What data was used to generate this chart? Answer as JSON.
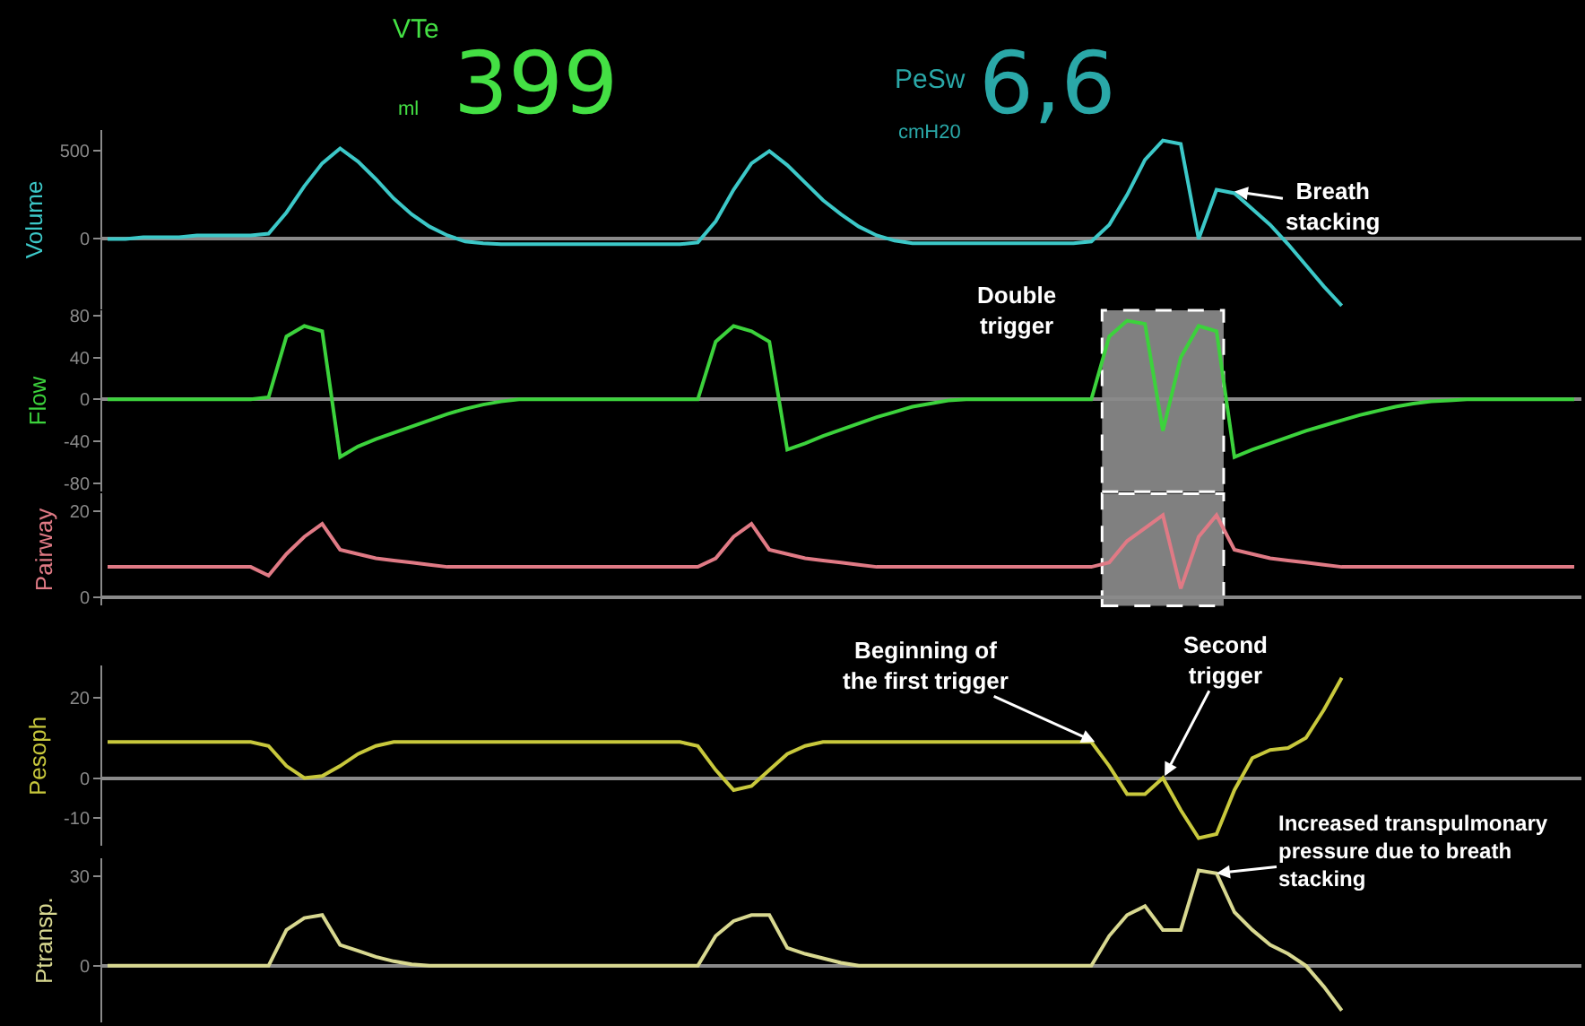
{
  "chart_data": [
    {
      "type": "line",
      "tick_labels": "y",
      "ylabel": "Volume",
      "ylim": [
        -400,
        620
      ],
      "yticks": [
        0,
        500
      ],
      "annotations": [
        "VTe",
        "399",
        "ml",
        "PeSw",
        "6,6",
        "cmH20",
        "Breath\nstacking"
      ],
      "categories": [
        null,
        null,
        null,
        null,
        null,
        null,
        null,
        null,
        null,
        null,
        null,
        null,
        null,
        null,
        null,
        null,
        null,
        null,
        null,
        null,
        null,
        null,
        null,
        null,
        null,
        null,
        null,
        null,
        null,
        null,
        null,
        null,
        null,
        null,
        null,
        null,
        null,
        null,
        null,
        null,
        null,
        null,
        null,
        null,
        null,
        null,
        null,
        null,
        null,
        null,
        null,
        null,
        null,
        null,
        null,
        null,
        null,
        null,
        null,
        null,
        null,
        null,
        null,
        null,
        null,
        null,
        null,
        null,
        null,
        null,
        null,
        null,
        null,
        null,
        null,
        null,
        null,
        null,
        null,
        null,
        null,
        null,
        null
      ],
      "series": [
        {
          "color": "#3cc8c8",
          "values": [
            0,
            0,
            10,
            10,
            10,
            20,
            20,
            20,
            20,
            30,
            150,
            300,
            430,
            515,
            440,
            340,
            230,
            140,
            70,
            20,
            -15,
            -25,
            -30,
            -30,
            -30,
            -30,
            -30,
            -30,
            -30,
            -30,
            -30,
            -30,
            -30,
            -20,
            100,
            280,
            430,
            500,
            420,
            320,
            220,
            140,
            70,
            20,
            -10,
            -25,
            -25,
            -25,
            -25,
            -25,
            -25,
            -25,
            -25,
            -25,
            -25,
            -15,
            80,
            250,
            450,
            560,
            540,
            0,
            280,
            260,
            170,
            80,
            -30,
            -150,
            -270,
            -380,
            null,
            null,
            null,
            null,
            null,
            null,
            null,
            null,
            null,
            null,
            null,
            null,
            null
          ]
        }
      ]
    },
    {
      "type": "line",
      "tick_labels": "y",
      "ylabel": "Flow",
      "ylim": [
        -88,
        85
      ],
      "yticks": [
        -80,
        -40,
        0,
        40,
        80
      ],
      "annotations": [
        "Double\ntrigger"
      ],
      "categories": [
        null,
        null,
        null,
        null,
        null,
        null,
        null,
        null,
        null,
        null,
        null,
        null,
        null,
        null,
        null,
        null,
        null,
        null,
        null,
        null,
        null,
        null,
        null,
        null,
        null,
        null,
        null,
        null,
        null,
        null,
        null,
        null,
        null,
        null,
        null,
        null,
        null,
        null,
        null,
        null,
        null,
        null,
        null,
        null,
        null,
        null,
        null,
        null,
        null,
        null,
        null,
        null,
        null,
        null,
        null,
        null,
        null,
        null,
        null,
        null,
        null,
        null,
        null,
        null,
        null,
        null,
        null,
        null,
        null,
        null,
        null,
        null,
        null,
        null,
        null,
        null,
        null,
        null,
        null,
        null,
        null,
        null,
        null
      ],
      "series": [
        {
          "color": "#3cd23c",
          "values": [
            0,
            0,
            0,
            0,
            0,
            0,
            0,
            0,
            0,
            2,
            60,
            70,
            65,
            -55,
            -45,
            -38,
            -32,
            -26,
            -20,
            -14,
            -9,
            -5,
            -2,
            0,
            0,
            0,
            0,
            0,
            0,
            0,
            0,
            0,
            0,
            0,
            55,
            70,
            65,
            55,
            -48,
            -42,
            -35,
            -29,
            -23,
            -17,
            -12,
            -7,
            -4,
            -1,
            0,
            0,
            0,
            0,
            0,
            0,
            0,
            0,
            60,
            75,
            72,
            -30,
            40,
            70,
            65,
            -55,
            -48,
            -42,
            -36,
            -30,
            -25,
            -20,
            -15,
            -11,
            -7,
            -4,
            -2,
            -1,
            0,
            0,
            0,
            0,
            0,
            0,
            0
          ]
        }
      ]
    },
    {
      "type": "line",
      "tick_labels": "y",
      "ylabel": "Pairway",
      "ylim": [
        -2,
        24
      ],
      "yticks": [
        0,
        20
      ],
      "categories": [
        null,
        null,
        null,
        null,
        null,
        null,
        null,
        null,
        null,
        null,
        null,
        null,
        null,
        null,
        null,
        null,
        null,
        null,
        null,
        null,
        null,
        null,
        null,
        null,
        null,
        null,
        null,
        null,
        null,
        null,
        null,
        null,
        null,
        null,
        null,
        null,
        null,
        null,
        null,
        null,
        null,
        null,
        null,
        null,
        null,
        null,
        null,
        null,
        null,
        null,
        null,
        null,
        null,
        null,
        null,
        null,
        null,
        null,
        null,
        null,
        null,
        null,
        null,
        null,
        null,
        null,
        null,
        null,
        null,
        null,
        null,
        null,
        null,
        null,
        null,
        null,
        null,
        null,
        null,
        null,
        null,
        null,
        null
      ],
      "series": [
        {
          "color": "#e07a85",
          "values": [
            7,
            7,
            7,
            7,
            7,
            7,
            7,
            7,
            7,
            5,
            10,
            14,
            17,
            11,
            10,
            9,
            8.5,
            8,
            7.5,
            7,
            7,
            7,
            7,
            7,
            7,
            7,
            7,
            7,
            7,
            7,
            7,
            7,
            7,
            7,
            9,
            14,
            17,
            11,
            10,
            9,
            8.5,
            8,
            7.5,
            7,
            7,
            7,
            7,
            7,
            7,
            7,
            7,
            7,
            7,
            7,
            7,
            7,
            8,
            13,
            16,
            19,
            2,
            14,
            19,
            11,
            10,
            9,
            8.5,
            8,
            7.5,
            7,
            7,
            7,
            7,
            7,
            7,
            7,
            7,
            7,
            7,
            7,
            7,
            7,
            7
          ]
        }
      ]
    },
    {
      "type": "line",
      "tick_labels": "y",
      "ylabel": "Pesoph",
      "ylim": [
        -17,
        28
      ],
      "yticks": [
        -10,
        0,
        20
      ],
      "annotations": [
        "Beginning of\nthe first trigger",
        "Second\ntrigger"
      ],
      "categories": [
        null,
        null,
        null,
        null,
        null,
        null,
        null,
        null,
        null,
        null,
        null,
        null,
        null,
        null,
        null,
        null,
        null,
        null,
        null,
        null,
        null,
        null,
        null,
        null,
        null,
        null,
        null,
        null,
        null,
        null,
        null,
        null,
        null,
        null,
        null,
        null,
        null,
        null,
        null,
        null,
        null,
        null,
        null,
        null,
        null,
        null,
        null,
        null,
        null,
        null,
        null,
        null,
        null,
        null,
        null,
        null,
        null,
        null,
        null,
        null,
        null,
        null,
        null,
        null,
        null,
        null,
        null,
        null,
        null,
        null,
        null,
        null,
        null,
        null,
        null,
        null,
        null,
        null,
        null,
        null,
        null,
        null,
        null
      ],
      "series": [
        {
          "color": "#c8c83c",
          "values": [
            9,
            9,
            9,
            9,
            9,
            9,
            9,
            9,
            9,
            8,
            3,
            0,
            0.5,
            3,
            6,
            8,
            9,
            9,
            9,
            9,
            9,
            9,
            9,
            9,
            9,
            9,
            9,
            9,
            9,
            9,
            9,
            9,
            9,
            8,
            2,
            -3,
            -2,
            2,
            6,
            8,
            9,
            9,
            9,
            9,
            9,
            9,
            9,
            9,
            9,
            9,
            9,
            9,
            9,
            9,
            9,
            9,
            3,
            -4,
            -4,
            0,
            -8,
            -15,
            -14,
            -3,
            5,
            7,
            7.5,
            10,
            17,
            25,
            null,
            null,
            null,
            null,
            null,
            null,
            null,
            null,
            null,
            null,
            null,
            null,
            null
          ]
        }
      ]
    },
    {
      "type": "line",
      "tick_labels": "y",
      "ylabel": "Ptransp.",
      "ylim": [
        -19,
        36
      ],
      "yticks": [
        0,
        30
      ],
      "annotations": [
        "Increased transpulmonary\npressure due to breath\nstacking"
      ],
      "categories": [
        null,
        null,
        null,
        null,
        null,
        null,
        null,
        null,
        null,
        null,
        null,
        null,
        null,
        null,
        null,
        null,
        null,
        null,
        null,
        null,
        null,
        null,
        null,
        null,
        null,
        null,
        null,
        null,
        null,
        null,
        null,
        null,
        null,
        null,
        null,
        null,
        null,
        null,
        null,
        null,
        null,
        null,
        null,
        null,
        null,
        null,
        null,
        null,
        null,
        null,
        null,
        null,
        null,
        null,
        null,
        null,
        null,
        null,
        null,
        null,
        null,
        null,
        null,
        null,
        null,
        null,
        null,
        null,
        null,
        null,
        null,
        null,
        null,
        null,
        null,
        null,
        null,
        null,
        null,
        null,
        null,
        null,
        null
      ],
      "series": [
        {
          "color": "#d8d890",
          "values": [
            0,
            0,
            0,
            0,
            0,
            0,
            0,
            0,
            0,
            0,
            12,
            16,
            17,
            7,
            5,
            3,
            1.5,
            0.5,
            0,
            0,
            0,
            0,
            0,
            0,
            0,
            0,
            0,
            0,
            0,
            0,
            0,
            0,
            0,
            0,
            10,
            15,
            17,
            17,
            6,
            4,
            2.5,
            1,
            0,
            0,
            0,
            0,
            0,
            0,
            0,
            0,
            0,
            0,
            0,
            0,
            0,
            0,
            10,
            17,
            20,
            12,
            12,
            32,
            31,
            18,
            12,
            7,
            4,
            0,
            -7,
            -15,
            null,
            null,
            null,
            null,
            null,
            null,
            null,
            null,
            null,
            null,
            null,
            null,
            null
          ]
        }
      ]
    }
  ]
}
